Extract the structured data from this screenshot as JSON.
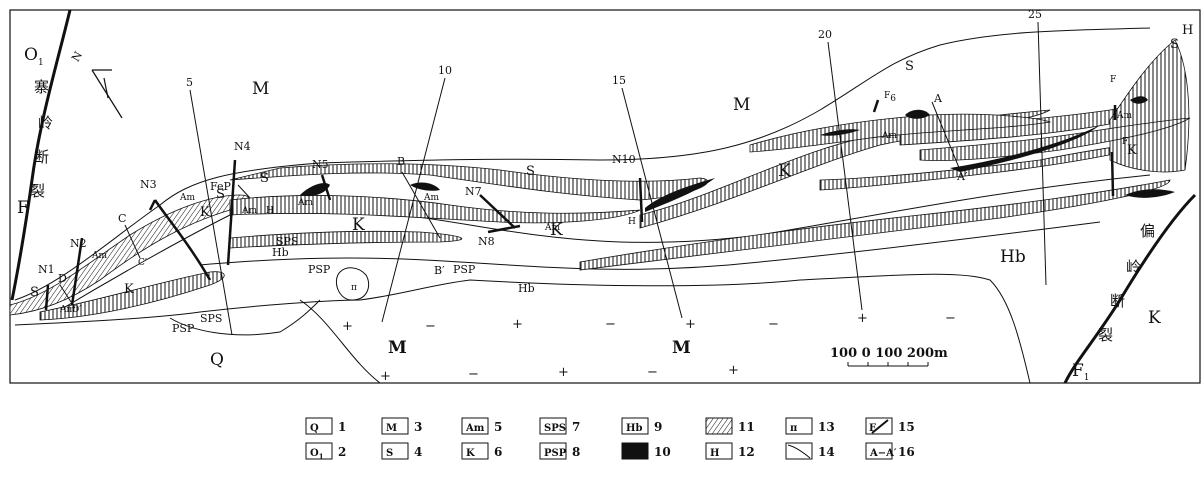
{
  "map": {
    "units": {
      "O1": "O",
      "O1_sub": "1",
      "M": "M",
      "S": "S",
      "K": "K",
      "Hb": "Hb",
      "Q": "Q",
      "F": "F",
      "F1": "F",
      "F1_sub": "1",
      "F6": "F",
      "F6_sub": "6",
      "Am": "Am",
      "H": "H",
      "SPS": "SPS",
      "PSP": "PSP",
      "FeP": "FeP",
      "pi": "π",
      "plus": "+",
      "minus": "−"
    },
    "prospect_lines": [
      "5",
      "10",
      "15",
      "20",
      "25"
    ],
    "faults_named": [
      "N1",
      "N2",
      "N3",
      "N4",
      "N5",
      "N7",
      "N8",
      "N10"
    ],
    "sections": {
      "A": "A",
      "A_prime": "A′",
      "B": "B",
      "B_prime": "B′",
      "C": "C",
      "C_prime": "C′",
      "D": "D",
      "D_prime": "D′"
    },
    "fault_names": {
      "left_chars": [
        "寨",
        "岭",
        "断",
        "裂"
      ],
      "right_chars": [
        "偏",
        "岭",
        "断",
        "裂"
      ]
    },
    "north": "N",
    "scale_bar": "100  0  100 200m"
  },
  "legend": [
    {
      "num": "1",
      "symbol": "Q",
      "type": "box"
    },
    {
      "num": "2",
      "symbol": "O",
      "sub": "1",
      "type": "box"
    },
    {
      "num": "3",
      "symbol": "M",
      "type": "box"
    },
    {
      "num": "4",
      "symbol": "S",
      "type": "box"
    },
    {
      "num": "5",
      "symbol": "Am",
      "type": "box"
    },
    {
      "num": "6",
      "symbol": "K",
      "type": "box"
    },
    {
      "num": "7",
      "symbol": "SPS",
      "type": "box"
    },
    {
      "num": "8",
      "symbol": "PSP",
      "type": "box"
    },
    {
      "num": "9",
      "symbol": "Hb",
      "type": "box"
    },
    {
      "num": "10",
      "symbol": "",
      "type": "solid"
    },
    {
      "num": "11",
      "symbol": "",
      "type": "hatch"
    },
    {
      "num": "12",
      "symbol": "H",
      "type": "box"
    },
    {
      "num": "13",
      "symbol": "π",
      "type": "box"
    },
    {
      "num": "14",
      "symbol": "",
      "type": "contact"
    },
    {
      "num": "15",
      "symbol": "F",
      "type": "fault"
    },
    {
      "num": "16",
      "symbol": "A−A′",
      "type": "section"
    }
  ],
  "colors": {
    "ink": "#111111",
    "paper": "#ffffff"
  }
}
